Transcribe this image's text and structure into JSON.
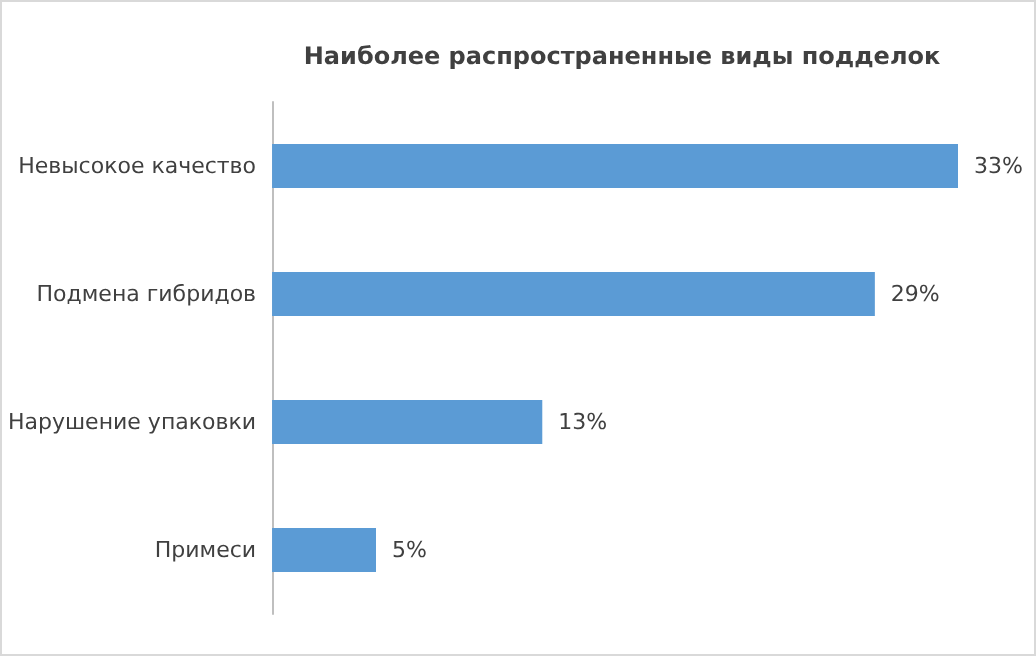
{
  "chart_data": {
    "type": "bar",
    "orientation": "horizontal",
    "title": "Наиболее распространенные виды подделок",
    "categories": [
      "Невысокое качество",
      "Подмена гибридов",
      "Нарушение упаковки",
      "Примеси"
    ],
    "values": [
      33,
      29,
      13,
      5
    ],
    "value_labels": [
      "33%",
      "29%",
      "13%",
      "5%"
    ],
    "color": "#5b9bd5",
    "grid": false,
    "tick_labels": "y"
  }
}
